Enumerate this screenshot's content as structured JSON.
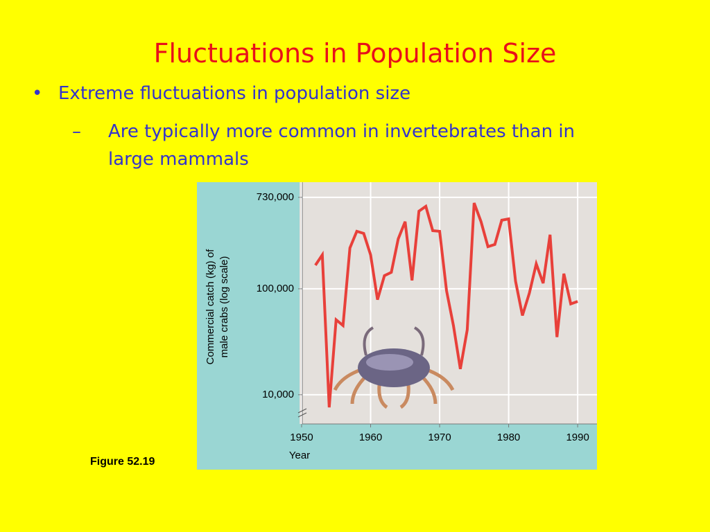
{
  "slide": {
    "title": "Fluctuations in Population Size",
    "bullet": "Extreme fluctuations in population size",
    "sub_bullet": "Are typically more common in invertebrates than in large mammals",
    "caption": "Figure 52.19"
  },
  "chart_data": {
    "type": "line",
    "xlabel": "Year",
    "ylabel": [
      "Commercial catch (kg) of",
      "male crabs (log scale)"
    ],
    "x": [
      1952,
      1953,
      1954,
      1955,
      1956,
      1957,
      1958,
      1959,
      1960,
      1961,
      1962,
      1963,
      1964,
      1965,
      1966,
      1967,
      1968,
      1969,
      1970,
      1971,
      1972,
      1973,
      1974,
      1975,
      1976,
      1977,
      1978,
      1979,
      1980,
      1981,
      1982,
      1983,
      1984,
      1985,
      1986,
      1987,
      1988,
      1989,
      1990
    ],
    "series": [
      {
        "name": "Male crab catch",
        "color": "#e8403a",
        "values": [
          167000,
          209000,
          7600,
          51000,
          45000,
          243000,
          349000,
          333000,
          209000,
          79000,
          133000,
          143000,
          296000,
          430000,
          120000,
          540000,
          600000,
          354000,
          349000,
          96000,
          45000,
          17500,
          41000,
          646000,
          430000,
          250000,
          262000,
          444000,
          457000,
          118000,
          56000,
          91000,
          172000,
          113000,
          324000,
          35000,
          139000,
          72000,
          76000
        ]
      }
    ],
    "xlim": [
      1949.7,
      1992.8
    ],
    "ylim": [
      5300,
      1015000
    ],
    "log_y": true,
    "xticks": [
      1950,
      1960,
      1970,
      1980,
      1990
    ],
    "yticks": [
      {
        "value": 10000,
        "label": "10,000"
      },
      {
        "value": 100000,
        "label": "100,000"
      },
      {
        "value": 730000,
        "label": "730,000"
      }
    ],
    "grid": true
  }
}
